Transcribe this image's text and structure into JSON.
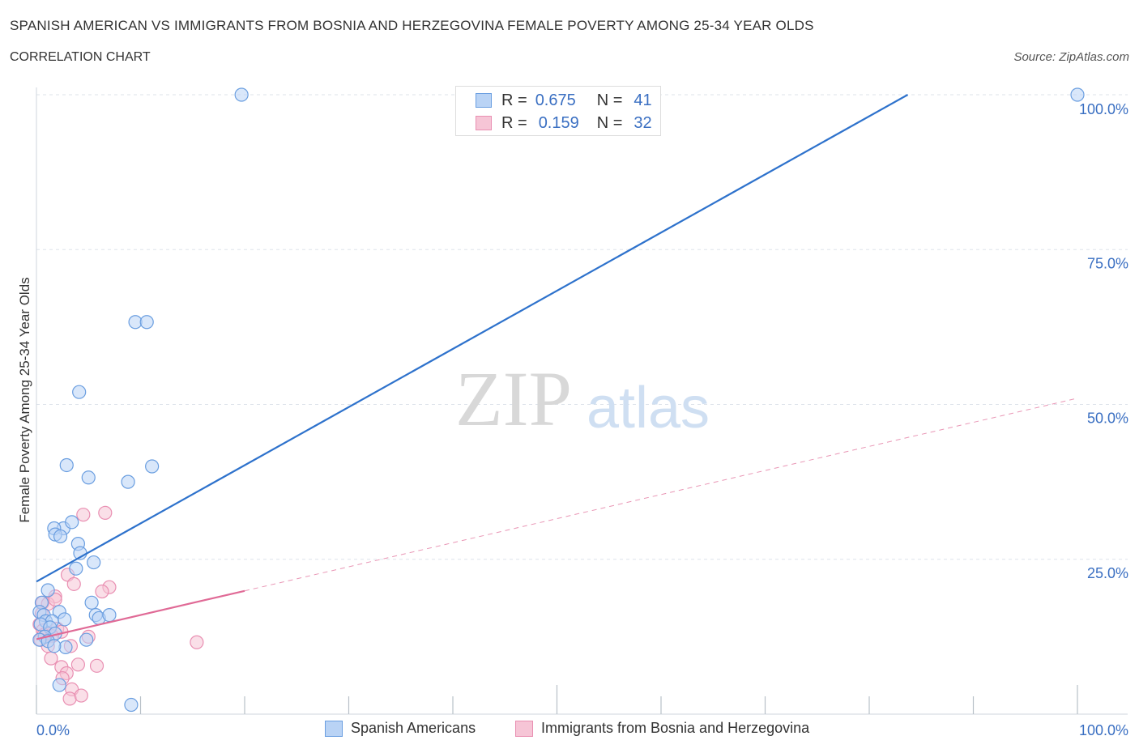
{
  "header": {
    "title": "SPANISH AMERICAN VS IMMIGRANTS FROM BOSNIA AND HERZEGOVINA FEMALE POVERTY AMONG 25-34 YEAR OLDS",
    "subtitle": "CORRELATION CHART",
    "source": "Source: ZipAtlas.com"
  },
  "legend": {
    "r_label": "R =",
    "n_label": "N =",
    "blue": {
      "r": "0.675",
      "n": "41"
    },
    "pink": {
      "r": "0.159",
      "n": "32"
    }
  },
  "watermark": {
    "zip": "ZIP",
    "atlas": "atlas"
  },
  "colors": {
    "blue_line": "#2e72cc",
    "blue_fill": "#b9d3f5",
    "blue_stroke": "#6a9ee0",
    "pink_line": "#e06a96",
    "pink_fill": "#f6c5d6",
    "pink_stroke": "#e98fb2",
    "tick_label": "#3a6fc2"
  },
  "chart_data": {
    "type": "scatter",
    "title": "SPANISH AMERICAN VS IMMIGRANTS FROM BOSNIA AND HERZEGOVINA FEMALE POVERTY AMONG 25-34 YEAR OLDS",
    "xlabel": "",
    "ylabel": "Female Poverty Among 25-34 Year Olds",
    "xlim": [
      0,
      100
    ],
    "ylim": [
      0,
      100
    ],
    "x_tick_labels": [
      "0.0%",
      "100.0%"
    ],
    "y_ticks": [
      {
        "value": 25,
        "label": "25.0%"
      },
      {
        "value": 50,
        "label": "50.0%"
      },
      {
        "value": 75,
        "label": "75.0%"
      },
      {
        "value": 100,
        "label": "100.0%"
      }
    ],
    "series": [
      {
        "name": "Spanish Americans",
        "color": "#6a9ee0",
        "trend": {
          "x0": 0,
          "y0": 21.4,
          "x1": 83.7,
          "y1": 100
        },
        "points": [
          [
            19.7,
            100
          ],
          [
            100,
            100
          ],
          [
            9.5,
            63.3
          ],
          [
            10.6,
            63.3
          ],
          [
            4.1,
            52.0
          ],
          [
            2.9,
            40.2
          ],
          [
            5.0,
            38.2
          ],
          [
            11.1,
            40.0
          ],
          [
            8.8,
            37.5
          ],
          [
            2.6,
            30.0
          ],
          [
            1.7,
            30.0
          ],
          [
            1.8,
            29.0
          ],
          [
            2.3,
            28.7
          ],
          [
            3.4,
            31.0
          ],
          [
            4.0,
            27.5
          ],
          [
            4.2,
            26.0
          ],
          [
            5.5,
            24.5
          ],
          [
            3.8,
            23.5
          ],
          [
            1.1,
            20.0
          ],
          [
            0.5,
            18.0
          ],
          [
            5.3,
            18.0
          ],
          [
            0.3,
            16.5
          ],
          [
            2.2,
            16.5
          ],
          [
            0.7,
            16.0
          ],
          [
            5.7,
            16.0
          ],
          [
            6.0,
            15.5
          ],
          [
            7.0,
            16.0
          ],
          [
            0.9,
            15.0
          ],
          [
            1.5,
            15.0
          ],
          [
            2.7,
            15.3
          ],
          [
            0.4,
            14.5
          ],
          [
            1.3,
            14.0
          ],
          [
            1.8,
            13.0
          ],
          [
            0.8,
            12.5
          ],
          [
            0.3,
            12.0
          ],
          [
            1.1,
            11.8
          ],
          [
            4.8,
            12.0
          ],
          [
            2.8,
            10.8
          ],
          [
            1.7,
            11.0
          ],
          [
            2.2,
            4.7
          ],
          [
            9.1,
            1.5
          ]
        ]
      },
      {
        "name": "Immigrants from Bosnia and Herzegovina",
        "color": "#e98fb2",
        "trend": {
          "x0": 0,
          "y0": 12.1,
          "x1": 20.0,
          "y1": 19.9,
          "x_end": 100,
          "y_end": 51.0
        },
        "points": [
          [
            6.6,
            32.5
          ],
          [
            4.5,
            32.2
          ],
          [
            3.0,
            22.5
          ],
          [
            3.6,
            21.0
          ],
          [
            7.0,
            20.5
          ],
          [
            6.3,
            19.8
          ],
          [
            1.8,
            19.0
          ],
          [
            0.6,
            18.0
          ],
          [
            1.1,
            17.8
          ],
          [
            1.8,
            18.5
          ],
          [
            0.5,
            16.2
          ],
          [
            0.3,
            14.5
          ],
          [
            0.6,
            13.5
          ],
          [
            1.0,
            13.0
          ],
          [
            2.0,
            13.8
          ],
          [
            2.4,
            13.3
          ],
          [
            0.7,
            12.8
          ],
          [
            1.5,
            12.6
          ],
          [
            0.4,
            12.0
          ],
          [
            1.1,
            11.0
          ],
          [
            3.3,
            11.0
          ],
          [
            5.0,
            12.5
          ],
          [
            15.4,
            11.6
          ],
          [
            1.4,
            9.0
          ],
          [
            4.0,
            8.0
          ],
          [
            5.8,
            7.8
          ],
          [
            2.4,
            7.6
          ],
          [
            2.9,
            6.6
          ],
          [
            2.5,
            5.8
          ],
          [
            3.4,
            4.0
          ],
          [
            3.2,
            2.5
          ],
          [
            4.3,
            3.0
          ]
        ]
      }
    ]
  },
  "bottom_legend": {
    "blue_label": "Spanish Americans",
    "pink_label": "Immigrants from Bosnia and Herzegovina"
  }
}
